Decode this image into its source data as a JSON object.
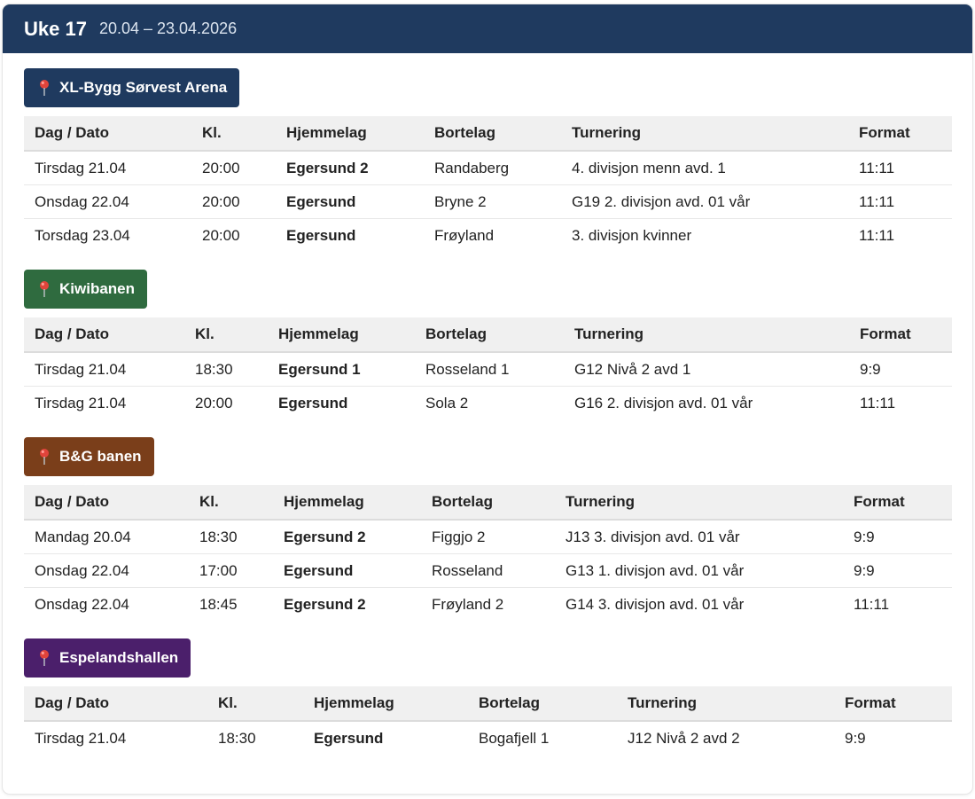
{
  "header": {
    "week": "Uke 17",
    "range": "20.04 – 23.04.2026"
  },
  "colors": {
    "header_bg": "#1f3a5f",
    "pin": "#e0443b"
  },
  "columns": [
    "Dag / Dato",
    "Kl.",
    "Hjemmelag",
    "Bortelag",
    "Turnering",
    "Format"
  ],
  "venues": [
    {
      "name": "XL-Bygg Sørvest Arena",
      "color": "#1f3a5f",
      "icon": "map-pin-icon",
      "games": [
        {
          "date": "Tirsdag 21.04",
          "time": "20:00",
          "home": "Egersund 2",
          "away": "Randaberg",
          "tournament": "4. divisjon menn avd. 1",
          "format": "11:11"
        },
        {
          "date": "Onsdag 22.04",
          "time": "20:00",
          "home": "Egersund",
          "away": "Bryne 2",
          "tournament": "G19 2. divisjon avd. 01 vår",
          "format": "11:11"
        },
        {
          "date": "Torsdag 23.04",
          "time": "20:00",
          "home": "Egersund",
          "away": "Frøyland",
          "tournament": "3. divisjon kvinner",
          "format": "11:11"
        }
      ]
    },
    {
      "name": "Kiwibanen",
      "color": "#2f6b3f",
      "icon": "map-pin-icon",
      "games": [
        {
          "date": "Tirsdag 21.04",
          "time": "18:30",
          "home": "Egersund 1",
          "away": "Rosseland 1",
          "tournament": "G12 Nivå 2 avd 1",
          "format": "9:9"
        },
        {
          "date": "Tirsdag 21.04",
          "time": "20:00",
          "home": "Egersund",
          "away": "Sola 2",
          "tournament": "G16 2. divisjon avd. 01 vår",
          "format": "11:11"
        }
      ]
    },
    {
      "name": "B&G banen",
      "color": "#7a3e1a",
      "icon": "map-pin-icon",
      "games": [
        {
          "date": "Mandag 20.04",
          "time": "18:30",
          "home": "Egersund 2",
          "away": "Figgjo 2",
          "tournament": "J13 3. divisjon avd. 01 vår",
          "format": "9:9"
        },
        {
          "date": "Onsdag 22.04",
          "time": "17:00",
          "home": "Egersund",
          "away": "Rosseland",
          "tournament": "G13 1. divisjon avd. 01 vår",
          "format": "9:9"
        },
        {
          "date": "Onsdag 22.04",
          "time": "18:45",
          "home": "Egersund 2",
          "away": "Frøyland 2",
          "tournament": "G14 3. divisjon avd. 01 vår",
          "format": "11:11"
        }
      ]
    },
    {
      "name": "Espelandshallen",
      "color": "#4b1f6b",
      "icon": "map-pin-icon",
      "games": [
        {
          "date": "Tirsdag 21.04",
          "time": "18:30",
          "home": "Egersund",
          "away": "Bogafjell 1",
          "tournament": "J12 Nivå 2 avd 2",
          "format": "9:9"
        }
      ]
    }
  ]
}
